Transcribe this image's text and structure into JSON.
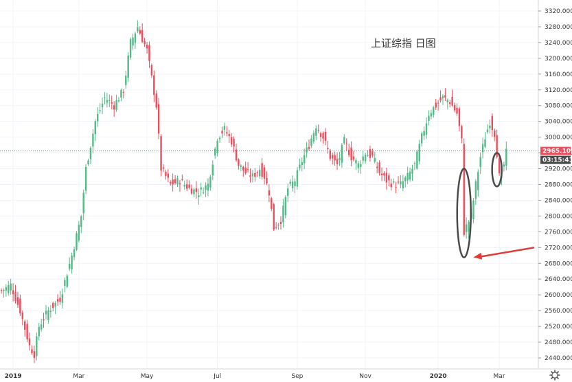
{
  "chart_data": {
    "type": "candlestick",
    "title": "上证综指 日图",
    "ylim": [
      2420,
      3330
    ],
    "y_ticks": [
      3320,
      3280,
      3240,
      3200,
      3160,
      3120,
      3080,
      3040,
      3000,
      2960,
      2920,
      2880,
      2840,
      2800,
      2760,
      2720,
      2680,
      2640,
      2600,
      2560,
      2520,
      2480,
      2440
    ],
    "y_tick_labels": [
      "3320.000",
      "3280.000",
      "3240.000",
      "3200.000",
      "3160.000",
      "3120.000",
      "3080.000",
      "3040.000",
      "3000.000",
      "2960.000",
      "2920.000",
      "2880.000",
      "2840.000",
      "2800.000",
      "2760.000",
      "2720.000",
      "2680.000",
      "2640.000",
      "2600.000",
      "2560.000",
      "2520.000",
      "2480.000",
      "2440.000"
    ],
    "x_ticks": [
      {
        "label": "2019",
        "bold": true,
        "index": 5
      },
      {
        "label": "Mar",
        "bold": false,
        "index": 33
      },
      {
        "label": "May",
        "bold": false,
        "index": 62
      },
      {
        "label": "Jul",
        "bold": false,
        "index": 92
      },
      {
        "label": "Sep",
        "bold": false,
        "index": 126
      },
      {
        "label": "Nov",
        "bold": false,
        "index": 155
      },
      {
        "label": "2020",
        "bold": true,
        "index": 186
      },
      {
        "label": "Mar",
        "bold": false,
        "index": 212
      }
    ],
    "n_candles": 216,
    "anchors": [
      [
        0,
        2610
      ],
      [
        4,
        2625
      ],
      [
        8,
        2560
      ],
      [
        12,
        2470
      ],
      [
        14,
        2450
      ],
      [
        16,
        2520
      ],
      [
        20,
        2560
      ],
      [
        25,
        2590
      ],
      [
        30,
        2700
      ],
      [
        34,
        2800
      ],
      [
        36,
        2920
      ],
      [
        40,
        3040
      ],
      [
        44,
        3100
      ],
      [
        48,
        3080
      ],
      [
        52,
        3120
      ],
      [
        55,
        3240
      ],
      [
        58,
        3280
      ],
      [
        62,
        3220
      ],
      [
        64,
        3150
      ],
      [
        66,
        3080
      ],
      [
        68,
        2920
      ],
      [
        72,
        2880
      ],
      [
        76,
        2890
      ],
      [
        80,
        2870
      ],
      [
        84,
        2860
      ],
      [
        88,
        2880
      ],
      [
        92,
        3000
      ],
      [
        95,
        3020
      ],
      [
        98,
        2990
      ],
      [
        101,
        2930
      ],
      [
        104,
        2910
      ],
      [
        107,
        2900
      ],
      [
        110,
        2920
      ],
      [
        112,
        2900
      ],
      [
        114,
        2860
      ],
      [
        116,
        2770
      ],
      [
        119,
        2790
      ],
      [
        122,
        2870
      ],
      [
        125,
        2890
      ],
      [
        128,
        2940
      ],
      [
        131,
        2980
      ],
      [
        134,
        3030
      ],
      [
        137,
        3000
      ],
      [
        140,
        2950
      ],
      [
        143,
        2930
      ],
      [
        146,
        2990
      ],
      [
        149,
        2950
      ],
      [
        152,
        2930
      ],
      [
        155,
        2960
      ],
      [
        158,
        2950
      ],
      [
        161,
        2910
      ],
      [
        164,
        2890
      ],
      [
        167,
        2880
      ],
      [
        170,
        2880
      ],
      [
        173,
        2900
      ],
      [
        176,
        2930
      ],
      [
        179,
        3000
      ],
      [
        182,
        3060
      ],
      [
        185,
        3080
      ],
      [
        188,
        3100
      ],
      [
        191,
        3090
      ],
      [
        194,
        3060
      ],
      [
        196,
        2990
      ],
      [
        197,
        2760
      ],
      [
        200,
        2800
      ],
      [
        202,
        2880
      ],
      [
        204,
        2950
      ],
      [
        206,
        3000
      ],
      [
        208,
        3040
      ],
      [
        210,
        3010
      ],
      [
        211,
        2960
      ],
      [
        212,
        2900
      ],
      [
        214,
        2930
      ],
      [
        215,
        2960
      ]
    ],
    "last_price": 2965.109,
    "last_price_label": "2965.109",
    "countdown_label": "03:15:41",
    "colors": {
      "up": "#53b987",
      "down": "#eb4d5c",
      "price_line": "#4caf50",
      "price_tag": "#eb4d5c",
      "countdown_tag": "#4a4a4a",
      "annotation": "#4a4a4a",
      "arrow": "#e53935"
    },
    "annotations": [
      {
        "type": "ellipse",
        "note": "sharp drop lows",
        "index": 197,
        "y_top": 2920,
        "y_bottom": 2695
      },
      {
        "type": "ellipse",
        "note": "recent pullback",
        "index": 211,
        "y_top": 2960,
        "y_bottom": 2875
      },
      {
        "type": "arrow",
        "from_index": 234,
        "from_y": 2720,
        "to_index": 201,
        "to_y": 2695
      }
    ]
  },
  "settings_icon": "gear-icon"
}
